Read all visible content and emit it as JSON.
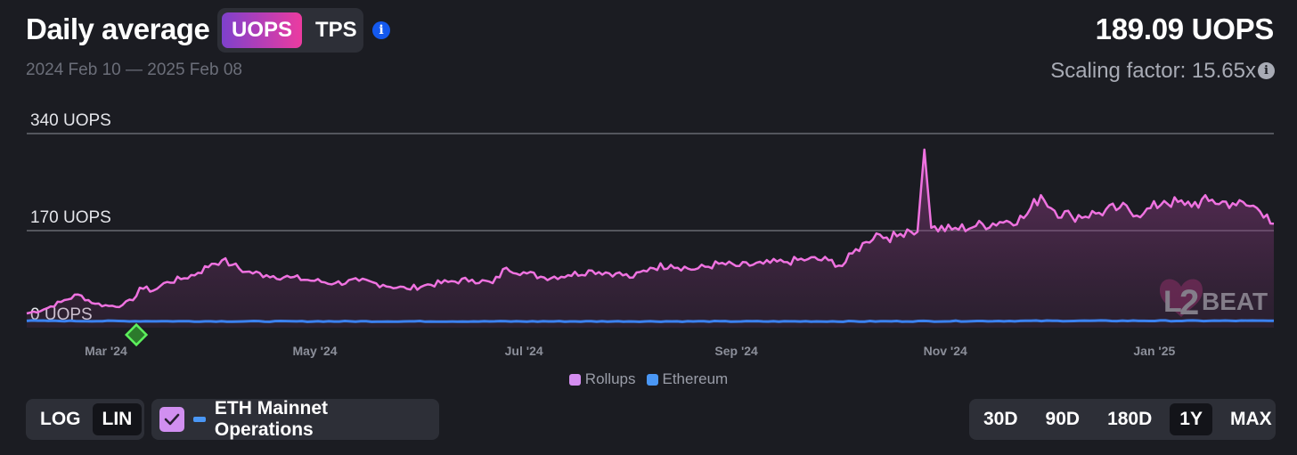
{
  "header": {
    "title": "Daily average",
    "unit_options": [
      "UOPS",
      "TPS"
    ],
    "unit_selected": "UOPS",
    "date_range": "2024 Feb 10 — 2025 Feb 08",
    "value": "189.09 UOPS",
    "scaling": "Scaling factor: 15.65x",
    "info_icon": "info-icon"
  },
  "legend": {
    "rollups_label": "Rollups",
    "ethereum_label": "Ethereum"
  },
  "controls": {
    "scale_options": [
      "LOG",
      "LIN"
    ],
    "scale_selected": "LIN",
    "eth_mainnet_label": "ETH Mainnet Operations",
    "eth_mainnet_checked": true,
    "ranges": [
      "30D",
      "90D",
      "180D",
      "1Y",
      "MAX"
    ],
    "range_selected": "1Y"
  },
  "watermark": "L2BEAT",
  "colors": {
    "rollups": "#ef72e0",
    "ethereum": "#3b82f0",
    "accent_gradient_start": "#7e41cc",
    "accent_gradient_end": "#ec3ba0",
    "marker": "#3bd83b"
  },
  "chart_data": {
    "type": "area",
    "ylim": [
      0,
      340
    ],
    "yticks": [
      "340 UOPS",
      "170 UOPS",
      "0 UOPS"
    ],
    "x_tick_labels": [
      "Mar '24",
      "May '24",
      "Jul '24",
      "Sep '24",
      "Nov '24",
      "Jan '25"
    ],
    "x_start": "2024-02-10",
    "x_end": "2025-02-08",
    "grid": true,
    "legend_position": "bottom-center",
    "marker": {
      "date": "2024-03-13",
      "shape": "diamond"
    },
    "series": [
      {
        "name": "Rollups",
        "points": [
          [
            "2024-02-10",
            25
          ],
          [
            "2024-02-15",
            32
          ],
          [
            "2024-02-20",
            45
          ],
          [
            "2024-02-25",
            58
          ],
          [
            "2024-03-01",
            42
          ],
          [
            "2024-03-05",
            38
          ],
          [
            "2024-03-09",
            40
          ],
          [
            "2024-03-12",
            48
          ],
          [
            "2024-03-14",
            70
          ],
          [
            "2024-03-18",
            65
          ],
          [
            "2024-03-22",
            80
          ],
          [
            "2024-03-26",
            85
          ],
          [
            "2024-03-31",
            96
          ],
          [
            "2024-04-04",
            112
          ],
          [
            "2024-04-07",
            118
          ],
          [
            "2024-04-10",
            110
          ],
          [
            "2024-04-14",
            98
          ],
          [
            "2024-04-20",
            92
          ],
          [
            "2024-04-27",
            88
          ],
          [
            "2024-05-04",
            82
          ],
          [
            "2024-05-10",
            78
          ],
          [
            "2024-05-17",
            82
          ],
          [
            "2024-05-24",
            75
          ],
          [
            "2024-05-31",
            68
          ],
          [
            "2024-06-05",
            74
          ],
          [
            "2024-06-12",
            80
          ],
          [
            "2024-06-19",
            84
          ],
          [
            "2024-06-25",
            78
          ],
          [
            "2024-06-29",
            105
          ],
          [
            "2024-07-05",
            95
          ],
          [
            "2024-07-10",
            88
          ],
          [
            "2024-07-17",
            92
          ],
          [
            "2024-07-24",
            100
          ],
          [
            "2024-07-31",
            95
          ],
          [
            "2024-08-05",
            88
          ],
          [
            "2024-08-10",
            105
          ],
          [
            "2024-08-16",
            110
          ],
          [
            "2024-08-23",
            102
          ],
          [
            "2024-08-30",
            112
          ],
          [
            "2024-09-05",
            108
          ],
          [
            "2024-09-12",
            112
          ],
          [
            "2024-09-18",
            115
          ],
          [
            "2024-09-25",
            120
          ],
          [
            "2024-10-01",
            118
          ],
          [
            "2024-10-05",
            108
          ],
          [
            "2024-10-08",
            130
          ],
          [
            "2024-10-12",
            150
          ],
          [
            "2024-10-15",
            165
          ],
          [
            "2024-10-18",
            158
          ],
          [
            "2024-10-21",
            160
          ],
          [
            "2024-10-24",
            172
          ],
          [
            "2024-10-27",
            168
          ],
          [
            "2024-10-29",
            312
          ],
          [
            "2024-10-31",
            175
          ],
          [
            "2024-11-06",
            172
          ],
          [
            "2024-11-13",
            178
          ],
          [
            "2024-11-20",
            185
          ],
          [
            "2024-11-27",
            192
          ],
          [
            "2024-12-02",
            232
          ],
          [
            "2024-12-06",
            205
          ],
          [
            "2024-12-11",
            195
          ],
          [
            "2024-12-18",
            200
          ],
          [
            "2024-12-25",
            210
          ],
          [
            "2025-01-01",
            200
          ],
          [
            "2025-01-07",
            222
          ],
          [
            "2025-01-13",
            215
          ],
          [
            "2025-01-20",
            222
          ],
          [
            "2025-01-27",
            218
          ],
          [
            "2025-02-03",
            210
          ],
          [
            "2025-02-06",
            198
          ],
          [
            "2025-02-08",
            182
          ]
        ]
      },
      {
        "name": "Ethereum",
        "points": [
          [
            "2024-02-10",
            12
          ],
          [
            "2024-04-10",
            11
          ],
          [
            "2024-06-10",
            11
          ],
          [
            "2024-08-10",
            11
          ],
          [
            "2024-10-10",
            11
          ],
          [
            "2024-12-10",
            12
          ],
          [
            "2025-02-08",
            12
          ]
        ]
      }
    ]
  }
}
